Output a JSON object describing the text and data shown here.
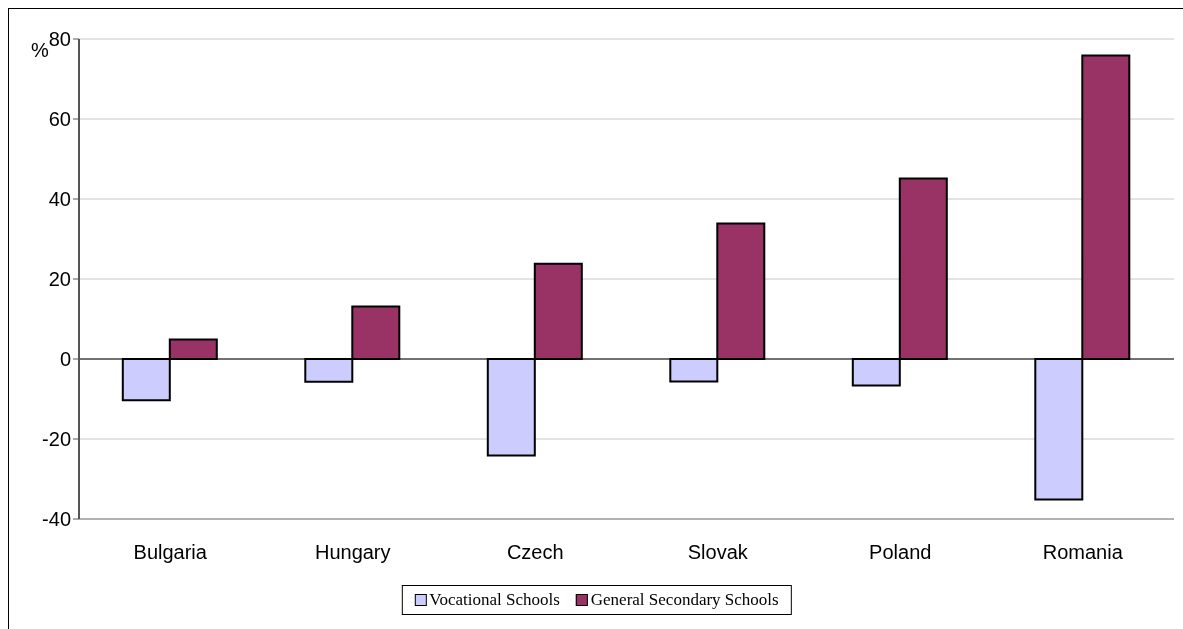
{
  "chart_data": {
    "type": "bar",
    "ylabel": "%",
    "categories": [
      "Bulgaria",
      "Hungary",
      "Czech",
      "Slovak",
      "Poland",
      "Romania"
    ],
    "series": [
      {
        "name": "Vocational Schools",
        "color": "#ccccff",
        "values": [
          -10.3,
          -5.7,
          -24.1,
          -5.6,
          -6.6,
          -35.1
        ]
      },
      {
        "name": "General Secondary Schools",
        "color": "#993366",
        "values": [
          4.9,
          13.1,
          23.8,
          33.9,
          45.1,
          75.9
        ]
      }
    ],
    "ylim": [
      -40,
      80
    ],
    "yticks": [
      -40,
      -20,
      0,
      20,
      40,
      60,
      80
    ],
    "grid": "y",
    "legend": "bottom"
  }
}
